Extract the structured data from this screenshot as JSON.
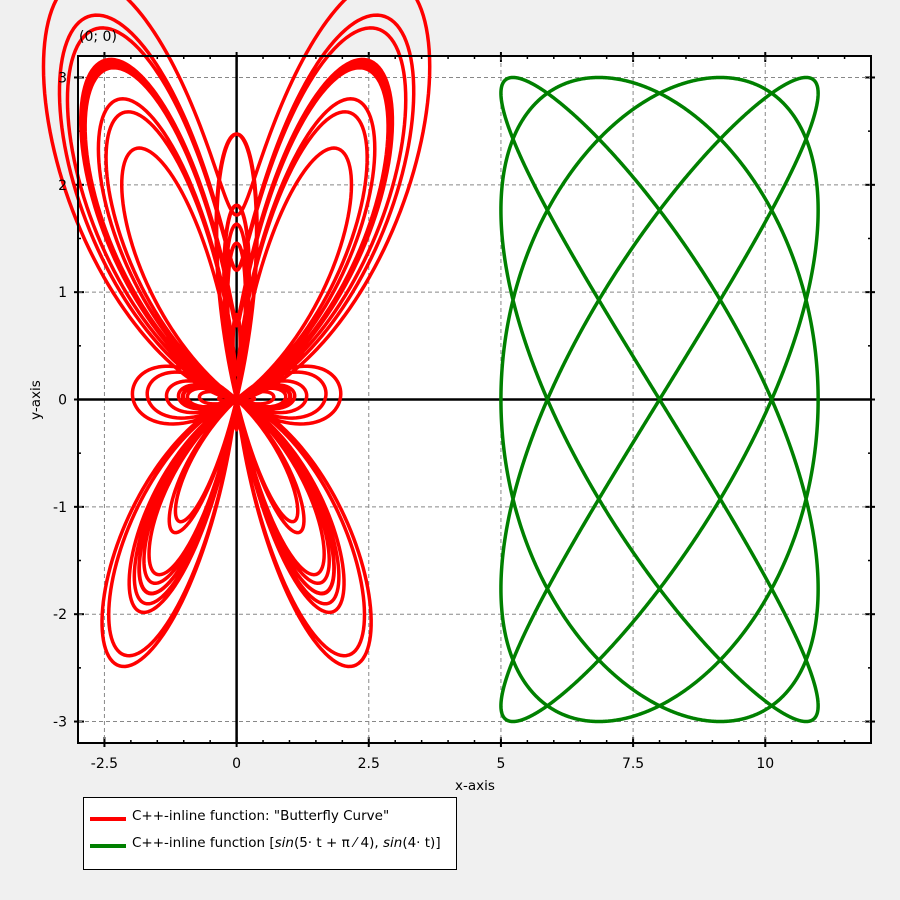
{
  "chart_data": {
    "type": "line",
    "title": "",
    "xlabel": "x-axis",
    "ylabel": "y-axis",
    "xlim": [
      -3.0,
      12.0
    ],
    "ylim": [
      -3.2,
      3.2
    ],
    "x_ticks": [
      -2.5,
      0,
      2.5,
      5,
      7.5,
      10
    ],
    "x_tick_labels": [
      "-2.5",
      "0",
      "2.5",
      "5",
      "7.5",
      "10"
    ],
    "y_ticks": [
      -3,
      -2,
      -1,
      0,
      1,
      2,
      3
    ],
    "y_tick_labels": [
      "-3",
      "-2",
      "-1",
      "0",
      "1",
      "2",
      "3"
    ],
    "grid": true,
    "origin_axes": true,
    "origin_label": "(0; 0)",
    "legend_position": "below",
    "series": [
      {
        "name": "C++-inline function: \"Butterfly Curve\"",
        "color": "#ff0000",
        "kind": "parametric",
        "x_expr": "sin(t)*(exp(cos(t)) - 2*cos(4t) - sin(t/12)^5)",
        "y_expr": "cos(t)*(exp(cos(t)) - 2*cos(4t) - sin(t/12)^5)",
        "t_range": [
          0,
          75.398
        ]
      },
      {
        "name": "C++-inline function [sin(5·t + π/4), sin(4·t)]",
        "color": "#008000",
        "kind": "parametric",
        "x_expr": "8 + 3*sin(5t + pi/4)",
        "y_expr": "3*sin(4t)",
        "t_range": [
          0,
          6.2832
        ]
      }
    ]
  },
  "legend": {
    "items": [
      {
        "label_plain": "C++-inline function: \"Butterfly Curve\"",
        "color": "#ff0000"
      },
      {
        "label_prefix": "C++-inline function [",
        "label_fn1": "sin",
        "label_arg1": "(5· t + π ⁄ 4),",
        "label_fn2": " sin",
        "label_arg2": "(4· t)",
        "label_suffix": "]",
        "color": "#008000"
      }
    ]
  }
}
